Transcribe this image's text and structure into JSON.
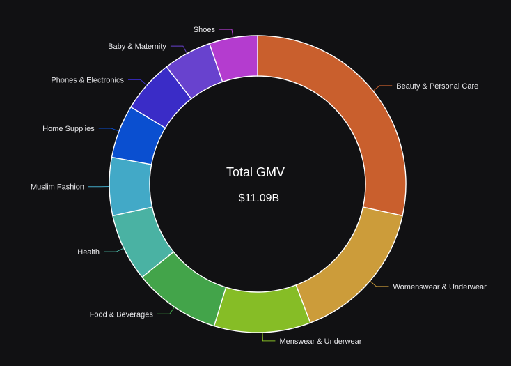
{
  "chart_data": {
    "type": "pie",
    "style": "donut",
    "center_title": "Total GMV",
    "center_value": "$11.09B",
    "slices": [
      {
        "label": "Beauty & Personal Care",
        "value": 0.27,
        "color": "#c95f2d"
      },
      {
        "label": "Womenswear & Underwear",
        "value": 0.15,
        "color": "#cc9c3a"
      },
      {
        "label": "Menswear & Underwear",
        "value": 0.1,
        "color": "#86bd26"
      },
      {
        "label": "Food & Beverages",
        "value": 0.09,
        "color": "#43a44a"
      },
      {
        "label": "Health",
        "value": 0.07,
        "color": "#4ab2a3"
      },
      {
        "label": "Muslim Fashion",
        "value": 0.06,
        "color": "#42a9c7"
      },
      {
        "label": "Home Supplies",
        "value": 0.055,
        "color": "#0a4fd0"
      },
      {
        "label": "Phones & Electronics",
        "value": 0.055,
        "color": "#3a2cc7"
      },
      {
        "label": "Baby & Maternity",
        "value": 0.05,
        "color": "#6842ce"
      },
      {
        "label": "Shoes",
        "value": 0.05,
        "color": "#b43ccf"
      }
    ]
  }
}
